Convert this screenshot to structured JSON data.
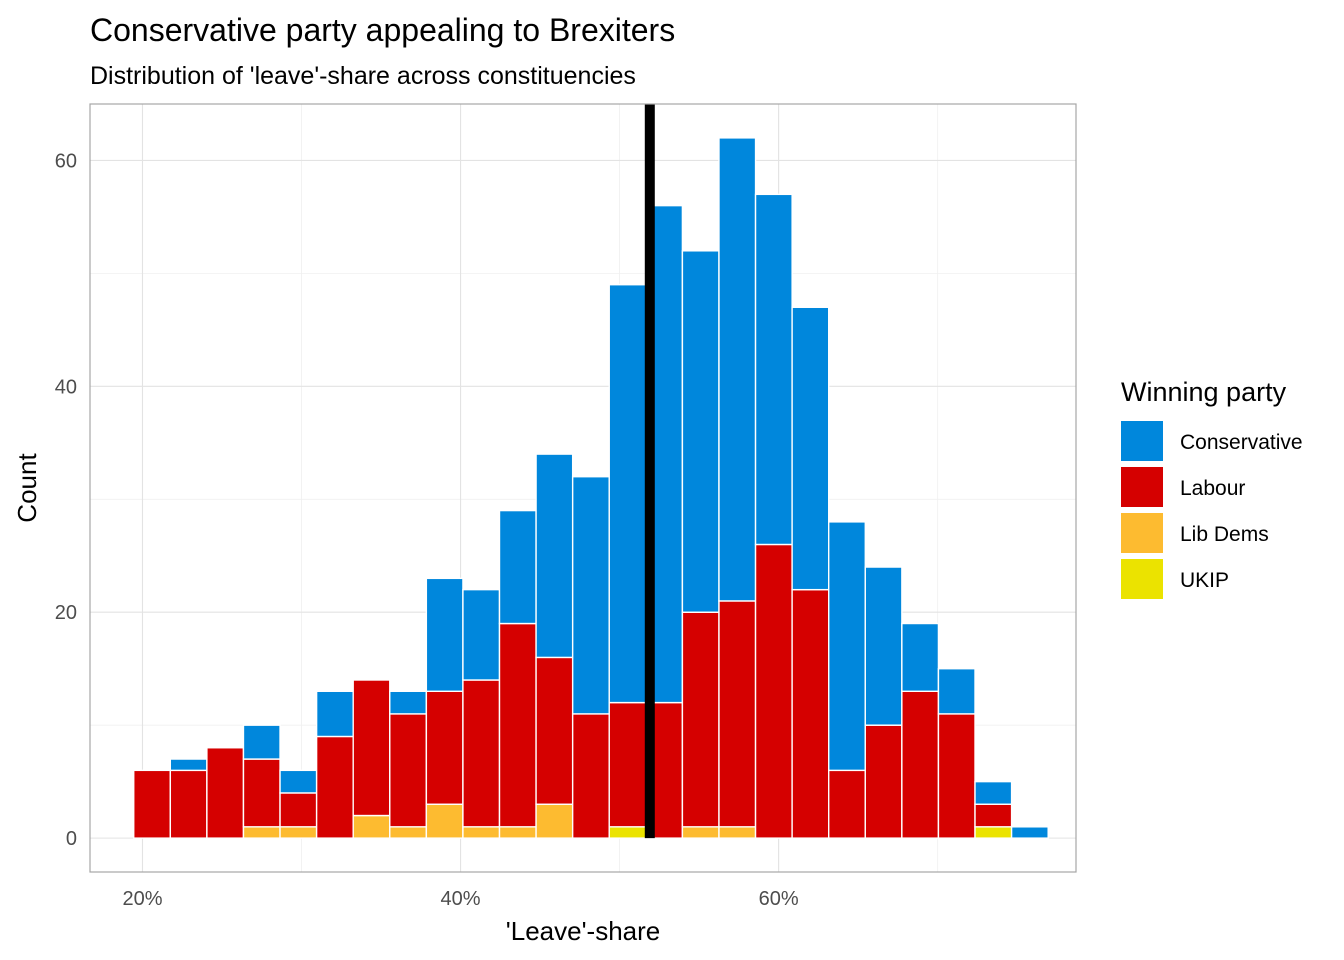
{
  "chart_data": {
    "type": "bar",
    "stacked": true,
    "title": "Conservative party appealing to Brexiters",
    "subtitle": "Distribution of 'leave'-share across constituencies",
    "xlabel": "'Leave'-share",
    "ylabel": "Count",
    "xlim": [
      0.167,
      0.787
    ],
    "ylim": [
      -3,
      65
    ],
    "x_ticks": [
      {
        "value": 0.2,
        "label": "20%"
      },
      {
        "value": 0.4,
        "label": "40%"
      },
      {
        "value": 0.6,
        "label": "60%"
      }
    ],
    "y_ticks": [
      {
        "value": 0,
        "label": "0"
      },
      {
        "value": 20,
        "label": "20"
      },
      {
        "value": 40,
        "label": "40"
      },
      {
        "value": 60,
        "label": "60"
      }
    ],
    "grid": true,
    "bin_width": 0.023,
    "bin_centers": [
      0.206,
      0.229,
      0.252,
      0.275,
      0.298,
      0.321,
      0.344,
      0.367,
      0.39,
      0.413,
      0.436,
      0.459,
      0.482,
      0.505,
      0.528,
      0.551,
      0.574,
      0.597,
      0.62,
      0.643,
      0.666,
      0.689,
      0.712,
      0.735,
      0.758
    ],
    "series": [
      {
        "name": "UKIP",
        "color": "#ebe300",
        "values": [
          0,
          0,
          0,
          0,
          0,
          0,
          0,
          0,
          0,
          0,
          0,
          0,
          0,
          1,
          0,
          0,
          0,
          0,
          0,
          0,
          0,
          0,
          0,
          1,
          0
        ]
      },
      {
        "name": "Lib Dems",
        "color": "#fdbb30",
        "values": [
          0,
          0,
          0,
          1,
          1,
          0,
          2,
          1,
          3,
          1,
          1,
          3,
          0,
          0,
          0,
          1,
          1,
          0,
          0,
          0,
          0,
          0,
          0,
          0,
          0
        ]
      },
      {
        "name": "Labour",
        "color": "#d50000",
        "values": [
          6,
          6,
          8,
          6,
          3,
          9,
          12,
          10,
          10,
          13,
          18,
          13,
          11,
          11,
          12,
          19,
          20,
          26,
          22,
          6,
          10,
          13,
          11,
          2,
          0
        ]
      },
      {
        "name": "Conservative",
        "color": "#0087dc",
        "values": [
          0,
          1,
          0,
          3,
          2,
          4,
          0,
          2,
          10,
          8,
          10,
          18,
          21,
          37,
          44,
          32,
          41,
          31,
          25,
          22,
          14,
          6,
          4,
          2,
          1
        ]
      }
    ],
    "vline": {
      "x": 0.519,
      "color": "#000000"
    },
    "legend": {
      "title": "Winning party",
      "position": "right",
      "items": [
        {
          "label": "Conservative",
          "color": "#0087dc"
        },
        {
          "label": "Labour",
          "color": "#d50000"
        },
        {
          "label": "Lib Dems",
          "color": "#fdbb30"
        },
        {
          "label": "UKIP",
          "color": "#ebe300"
        }
      ]
    }
  }
}
